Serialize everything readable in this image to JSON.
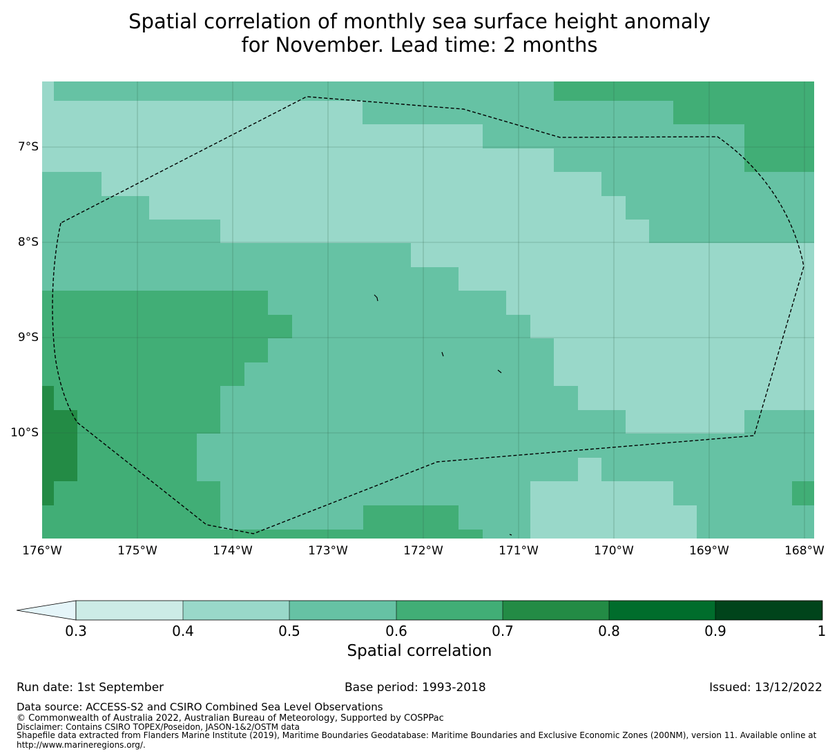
{
  "title": {
    "line1": "Spatial correlation of monthly sea surface height anomaly",
    "line2": "for November. Lead time: 2 months"
  },
  "map": {
    "lon_range": [
      -176,
      -167.9
    ],
    "lat_range": [
      -11.1,
      -6.3
    ],
    "y_ticks": [
      "7°S",
      "8°S",
      "9°S",
      "10°S"
    ],
    "x_ticks": [
      "176°W",
      "175°W",
      "174°W",
      "173°W",
      "172°W",
      "171°W",
      "170°W",
      "169°W",
      "168°W"
    ],
    "boundary_name": "Tokelau EEZ boundary",
    "colors": {
      "c05": "#99d8c9",
      "c06": "#66c2a4",
      "c07": "#41ae76",
      "c08": "#238b45"
    }
  },
  "colorbar": {
    "label": "Spatial correlation",
    "ticks": [
      "0.3",
      "0.4",
      "0.5",
      "0.6",
      "0.7",
      "0.8",
      "0.9",
      "1"
    ],
    "extend_color": "#e5f5f9",
    "colors": [
      "#ccece6",
      "#99d8c9",
      "#66c2a4",
      "#41ae76",
      "#238b45",
      "#006d2c",
      "#00441b"
    ]
  },
  "footer": {
    "run_date": "Run date: 1st September",
    "base_period": "Base period: 1993-2018",
    "issued": "Issued: 13/12/2022",
    "data_source": "Data source: ACCESS-S2 and CSIRO Combined Sea Level Observations",
    "copyright": "© Commonwealth of Australia 2022, Australian Bureau of Meteorology, Supported by COSPPac",
    "disclaimer": "Disclaimer: Contains CSIRO TOPEX/Poseidon, JASON-1&2/OSTM data",
    "shapefile": "Shapefile data extracted from Flanders Marine Institute (2019), Maritime Boundaries Geodatabase: Maritime Boundaries and Exclusive Economic Zones (200NM), version 11. Available online at http://www.marineregions.org/."
  }
}
